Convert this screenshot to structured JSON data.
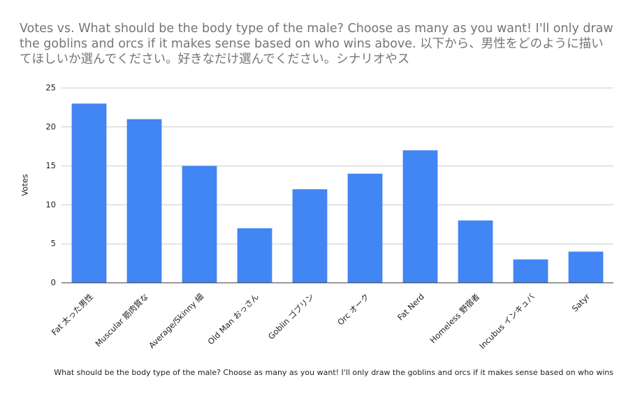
{
  "chart_data": {
    "type": "bar",
    "title": "Votes vs. What should be the body type of the male? Choose as many as you want! I'll only draw the goblins and orcs if it makes sense based on who wins above. 以下から、男性をどのように描いてほしいか選んでください。好きなだけ選んでください。シナリオやス",
    "x_label": "What should be the body type of the male? Choose as many as you want! I'll only draw the goblins and orcs if it makes sense based on who wins",
    "y_label": "Votes",
    "categories": [
      "Fat 太った男性",
      "Muscular 筋肉質な",
      "Average/Skinny 細",
      "Old Man おっさん",
      "Goblin ゴブリン",
      "Orc オーク",
      "Fat Nerd",
      "Homeless 野宿者",
      "Incubus インキュバ",
      "Satyr"
    ],
    "values": [
      23,
      21,
      15,
      7,
      12,
      14,
      17,
      8,
      3,
      4
    ],
    "color": "#4285f4",
    "ylim": [
      0,
      25
    ],
    "yticks": [
      0,
      5,
      10,
      15,
      20,
      25
    ],
    "grid": true
  }
}
